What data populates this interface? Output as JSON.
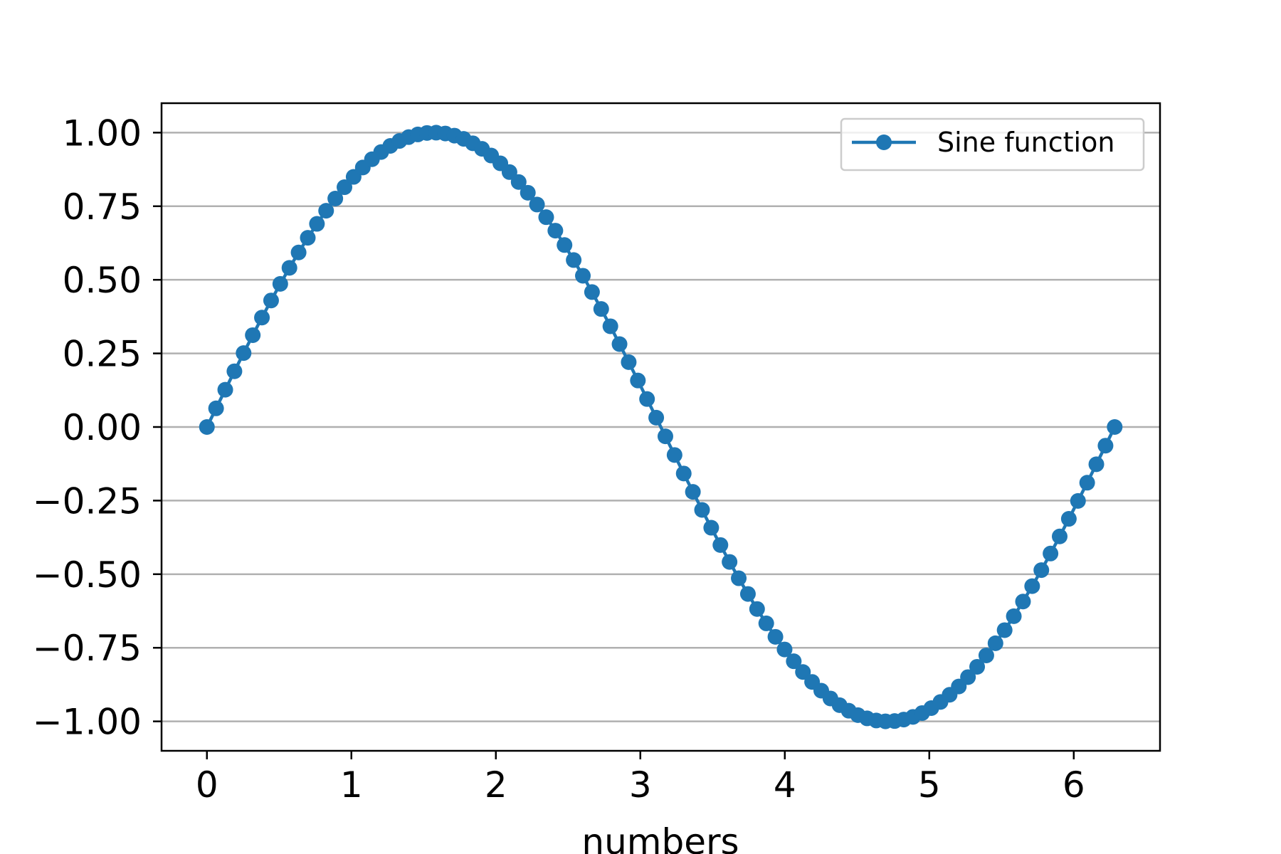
{
  "chart_data": {
    "type": "line",
    "title": "",
    "xlabel": "numbers",
    "ylabel": "",
    "xlim": [
      -0.314,
      6.597
    ],
    "ylim": [
      -1.1,
      1.1
    ],
    "x_ticks": [
      0,
      1,
      2,
      3,
      4,
      5,
      6
    ],
    "x_tick_labels": [
      "0",
      "1",
      "2",
      "3",
      "4",
      "5",
      "6"
    ],
    "y_ticks": [
      1.0,
      0.75,
      0.5,
      0.25,
      0.0,
      -0.25,
      -0.5,
      -0.75,
      -1.0
    ],
    "y_tick_labels": [
      "1.00",
      "0.75",
      "0.50",
      "0.25",
      "0.00",
      "−0.25",
      "−0.50",
      "−0.75",
      "−1.00"
    ],
    "grid": "horizontal",
    "legend_position": "top-right",
    "marker": "circle",
    "series": [
      {
        "name": "Sine function",
        "color": "#1f77b4",
        "x": [
          0.0,
          0.0635,
          0.127,
          0.1904,
          0.2539,
          0.3174,
          0.3808,
          0.4443,
          0.5078,
          0.5712,
          0.6347,
          0.6982,
          0.7616,
          0.8251,
          0.8886,
          0.952,
          1.0155,
          1.079,
          1.1424,
          1.2059,
          1.2694,
          1.3328,
          1.3963,
          1.4598,
          1.5232,
          1.5867,
          1.6502,
          1.7136,
          1.7771,
          1.8406,
          1.904,
          1.9675,
          2.031,
          2.0944,
          2.1579,
          2.2214,
          2.2848,
          2.3483,
          2.4118,
          2.4752,
          2.5387,
          2.6022,
          2.6656,
          2.7291,
          2.7926,
          2.856,
          2.9195,
          2.983,
          3.0464,
          3.1099,
          3.1734,
          3.2368,
          3.3003,
          3.3638,
          3.4272,
          3.4907,
          3.5542,
          3.6176,
          3.6811,
          3.7446,
          3.808,
          3.8715,
          3.935,
          3.9984,
          4.0619,
          4.1254,
          4.1888,
          4.2523,
          4.3158,
          4.3792,
          4.4427,
          4.5062,
          4.5696,
          4.6331,
          4.6966,
          4.76,
          4.8235,
          4.887,
          4.9504,
          5.0139,
          5.0774,
          5.1408,
          5.2043,
          5.2678,
          5.3312,
          5.3947,
          5.4582,
          5.5216,
          5.5851,
          5.6486,
          5.712,
          5.7755,
          5.839,
          5.9024,
          5.9659,
          6.0294,
          6.0928,
          6.1563,
          6.2198,
          6.2832
        ],
        "y": [
          0.0,
          0.0634,
          0.1266,
          0.1893,
          0.2511,
          0.312,
          0.3717,
          0.4298,
          0.4862,
          0.5406,
          0.5929,
          0.6428,
          0.6901,
          0.7346,
          0.7761,
          0.8146,
          0.8497,
          0.8815,
          0.9096,
          0.9341,
          0.9549,
          0.9718,
          0.9848,
          0.9938,
          0.9989,
          0.9999,
          0.997,
          0.9898,
          0.9788,
          0.9638,
          0.945,
          0.9222,
          0.8957,
          0.866,
          0.8322,
          0.7958,
          0.7557,
          0.7128,
          0.667,
          0.6182,
          0.5671,
          0.5138,
          0.4583,
          0.4009,
          0.3422,
          0.2817,
          0.2203,
          0.158,
          0.0951,
          0.0317,
          -0.0317,
          -0.0951,
          -0.158,
          -0.2203,
          -0.2817,
          -0.3422,
          -0.4009,
          -0.4583,
          -0.5138,
          -0.5671,
          -0.6182,
          -0.667,
          -0.7128,
          -0.7557,
          -0.7958,
          -0.8322,
          -0.866,
          -0.8957,
          -0.9222,
          -0.945,
          -0.9638,
          -0.9788,
          -0.9898,
          -0.997,
          -0.9999,
          -0.9989,
          -0.9938,
          -0.9848,
          -0.9718,
          -0.9549,
          -0.9341,
          -0.9096,
          -0.8815,
          -0.8497,
          -0.8146,
          -0.7761,
          -0.7346,
          -0.6901,
          -0.6428,
          -0.5929,
          -0.5406,
          -0.4862,
          -0.4298,
          -0.3717,
          -0.312,
          -0.2511,
          -0.1893,
          -0.1266,
          -0.0634,
          0.0
        ]
      }
    ]
  }
}
